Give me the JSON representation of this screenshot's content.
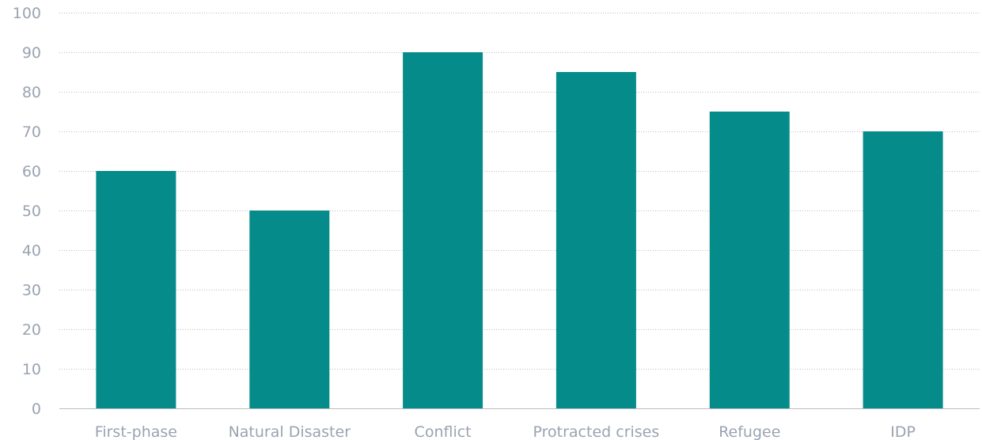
{
  "chart_data": {
    "type": "bar",
    "title": "",
    "xlabel": "",
    "ylabel": "",
    "categories": [
      "First-phase",
      "Natural Disaster",
      "Conflict",
      "Protracted crises",
      "Refugee",
      "IDP"
    ],
    "values": [
      60,
      50,
      90,
      85,
      75,
      70
    ],
    "ylim": [
      0,
      100
    ],
    "yticks": [
      0,
      10,
      20,
      30,
      40,
      50,
      60,
      70,
      80,
      90,
      100
    ],
    "ytick_labels": [
      "0",
      "10",
      "20",
      "30",
      "40",
      "50",
      "60",
      "70",
      "80",
      "90",
      "100"
    ],
    "grid": true,
    "legend": "none",
    "colors": {
      "bar": "#058c8a",
      "grid": "#b9bcc2",
      "text": "#9aa3b1"
    }
  }
}
